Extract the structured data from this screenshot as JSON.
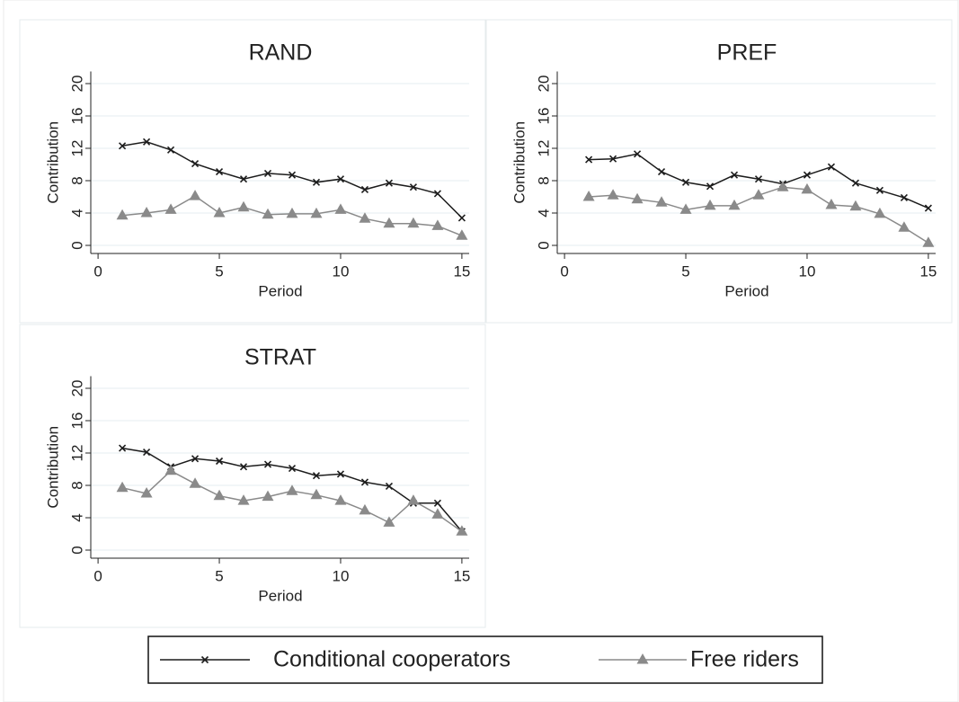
{
  "chart_data": [
    {
      "type": "line",
      "title": "RAND",
      "x_label": "Period",
      "y_label": "Contribution",
      "x": [
        1,
        2,
        3,
        4,
        5,
        6,
        7,
        8,
        9,
        10,
        11,
        12,
        13,
        14,
        15
      ],
      "series": [
        {
          "name": "Conditional cooperators",
          "color": "#1c1c1c",
          "marker": "x",
          "values": [
            12.3,
            12.8,
            11.8,
            10.1,
            9.1,
            8.2,
            8.9,
            8.7,
            7.8,
            8.2,
            6.9,
            7.7,
            7.2,
            6.4,
            3.4
          ]
        },
        {
          "name": "Free riders",
          "color": "#8a8a8a",
          "marker": "triangle",
          "values": [
            3.7,
            4.0,
            4.4,
            6.1,
            4.0,
            4.7,
            3.8,
            3.9,
            3.9,
            4.4,
            3.3,
            2.7,
            2.7,
            2.4,
            1.2
          ]
        }
      ],
      "xlim": [
        -0.3,
        15.3
      ],
      "xticks": [
        0,
        5,
        10,
        15
      ],
      "ylim": [
        -1,
        21.5
      ],
      "yticks": [
        0,
        4,
        8,
        12,
        16,
        20
      ],
      "grid": true
    },
    {
      "type": "line",
      "title": "PREF",
      "x_label": "Period",
      "y_label": "Contribution",
      "x": [
        1,
        2,
        3,
        4,
        5,
        6,
        7,
        8,
        9,
        10,
        11,
        12,
        13,
        14,
        15
      ],
      "series": [
        {
          "name": "Conditional cooperators",
          "color": "#1c1c1c",
          "marker": "x",
          "values": [
            10.6,
            10.7,
            11.3,
            9.1,
            7.8,
            7.3,
            8.7,
            8.2,
            7.6,
            8.7,
            9.7,
            7.7,
            6.8,
            5.9,
            4.6
          ]
        },
        {
          "name": "Free riders",
          "color": "#8a8a8a",
          "marker": "triangle",
          "values": [
            6.0,
            6.2,
            5.7,
            5.3,
            4.4,
            4.9,
            4.9,
            6.2,
            7.2,
            6.9,
            5.0,
            4.8,
            3.9,
            2.2,
            0.3
          ]
        }
      ],
      "xlim": [
        -0.3,
        15.3
      ],
      "xticks": [
        0,
        5,
        10,
        15
      ],
      "ylim": [
        -1,
        21.5
      ],
      "yticks": [
        0,
        4,
        8,
        12,
        16,
        20
      ],
      "grid": true
    },
    {
      "type": "line",
      "title": "STRAT",
      "x_label": "Period",
      "y_label": "Contribution",
      "x": [
        1,
        2,
        3,
        4,
        5,
        6,
        7,
        8,
        9,
        10,
        11,
        12,
        13,
        14,
        15
      ],
      "series": [
        {
          "name": "Conditional cooperators",
          "color": "#1c1c1c",
          "marker": "x",
          "values": [
            12.6,
            12.1,
            10.3,
            11.3,
            11.0,
            10.3,
            10.6,
            10.1,
            9.2,
            9.4,
            8.4,
            7.9,
            5.8,
            5.8,
            2.3
          ]
        },
        {
          "name": "Free riders",
          "color": "#8a8a8a",
          "marker": "triangle",
          "values": [
            7.7,
            7.0,
            9.8,
            8.2,
            6.7,
            6.1,
            6.6,
            7.3,
            6.8,
            6.1,
            4.9,
            3.4,
            6.1,
            4.4,
            2.3
          ]
        }
      ],
      "xlim": [
        -0.3,
        15.3
      ],
      "xticks": [
        0,
        5,
        10,
        15
      ],
      "ylim": [
        -1,
        21.5
      ],
      "yticks": [
        0,
        4,
        8,
        12,
        16,
        20
      ],
      "grid": true
    }
  ]
}
